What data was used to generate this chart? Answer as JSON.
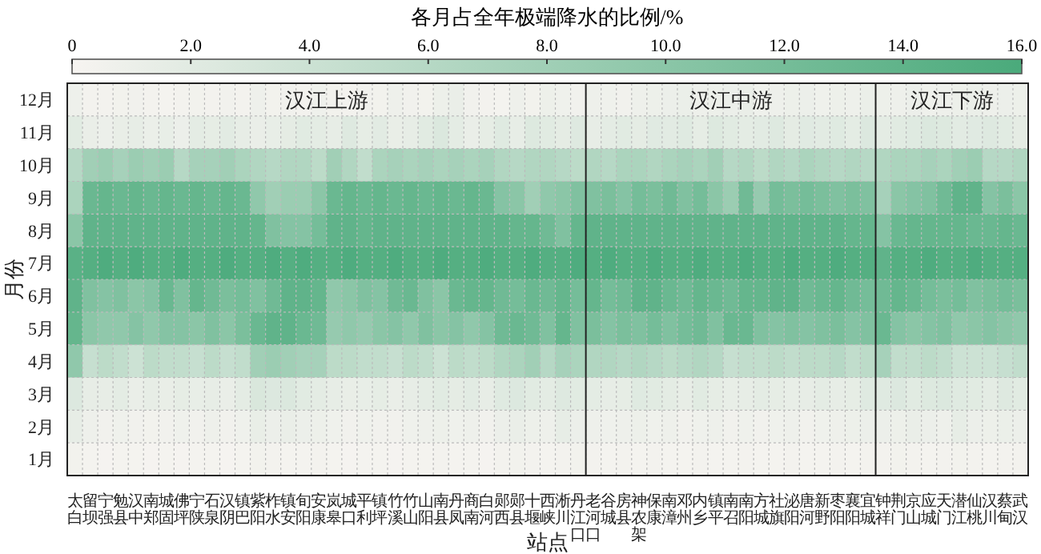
{
  "chart_data": {
    "type": "heatmap",
    "clabel": "各月占全年极端降水的比例/%",
    "xlabel": "站点",
    "ylabel": "月份",
    "categories": [
      "太白",
      "留坝",
      "宁强",
      "勉县",
      "汉中",
      "南郑",
      "城固",
      "佛坪",
      "宁陕",
      "石泉",
      "汉阴",
      "镇巴",
      "紫阳",
      "柞水",
      "镇安",
      "旬阳",
      "安康",
      "岚皋",
      "城口",
      "平利",
      "镇坪",
      "竹溪",
      "竹山",
      "山阳",
      "南县",
      "丹凤",
      "商南",
      "白河",
      "郧西",
      "郧县",
      "十堰",
      "西峡",
      "淅川",
      "丹江口",
      "老河口",
      "谷城",
      "房县",
      "神农架",
      "保康",
      "南漳",
      "邓州",
      "内乡",
      "镇平",
      "南召",
      "南阳",
      "方城",
      "社旗",
      "泌阳",
      "唐河",
      "新野",
      "枣阳",
      "襄阳",
      "宜城",
      "钟祥",
      "荆门",
      "京山",
      "应城",
      "天门",
      "潜江",
      "仙桃",
      "汉川",
      "蔡甸",
      "武汉"
    ],
    "y_categories": [
      "12月",
      "11月",
      "10月",
      "9月",
      "8月",
      "7月",
      "6月",
      "5月",
      "4月",
      "3月",
      "2月",
      "1月"
    ],
    "cells": [
      [
        0.8,
        0.4,
        0.4,
        0.5,
        0.6,
        0.4,
        0.3,
        0.4,
        0.5,
        0.4,
        0.6,
        0.4,
        0.8,
        0.5,
        0.6,
        0.4,
        0.7,
        0.5,
        0.4,
        0.6,
        0.5,
        0.8,
        0.6,
        0.5,
        0.9,
        1.2,
        0.6,
        0.4,
        0.3,
        0.8,
        0.5,
        0.9,
        0.7,
        0.6,
        0.8,
        0.7,
        0.6,
        0.8,
        0.9,
        1.0,
        1.1,
        0.8,
        0.9,
        1.0,
        1.2,
        0.7,
        0.8,
        0.9,
        1.0,
        0.7,
        0.9,
        0.8,
        1.1,
        0.9,
        0.8,
        1.0,
        0.7,
        0.8,
        0.9,
        1.1,
        0.8,
        1.0,
        0.9
      ],
      [
        2.0,
        1.2,
        1.0,
        1.3,
        1.5,
        1.1,
        1.4,
        1.0,
        1.8,
        1.6,
        1.9,
        1.5,
        1.2,
        1.4,
        1.7,
        2.0,
        1.8,
        1.5,
        2.3,
        1.6,
        1.9,
        1.3,
        1.5,
        2.0,
        2.6,
        1.8,
        1.2,
        1.6,
        2.2,
        1.5,
        2.4,
        2.0,
        1.7,
        2.3,
        1.5,
        1.8,
        2.0,
        1.7,
        2.1,
        1.9,
        2.2,
        1.6,
        2.4,
        2.0,
        1.8,
        1.9,
        2.3,
        1.7,
        2.1,
        1.9,
        2.2,
        1.8,
        2.5,
        1.8,
        2.0,
        2.2,
        2.6,
        2.4,
        1.9,
        2.1,
        2.3,
        2.0,
        1.7
      ],
      [
        6.0,
        8.0,
        8.5,
        7.5,
        8.5,
        8.0,
        8.5,
        6.0,
        7.5,
        7.5,
        8.0,
        7.0,
        6.5,
        6.0,
        6.5,
        6.5,
        5.5,
        8.0,
        6.5,
        5.0,
        7.0,
        7.5,
        7.0,
        7.5,
        7.0,
        7.5,
        7.0,
        7.5,
        6.5,
        6.0,
        6.5,
        6.5,
        6.0,
        5.5,
        6.5,
        6.0,
        7.0,
        7.0,
        6.5,
        7.0,
        7.5,
        7.0,
        8.0,
        6.0,
        6.5,
        5.5,
        6.5,
        6.0,
        7.0,
        6.5,
        6.0,
        6.5,
        6.0,
        6.5,
        7.0,
        7.0,
        7.5,
        7.0,
        8.0,
        8.5,
        6.0,
        6.0,
        6.5
      ],
      [
        7.0,
        13.0,
        13.5,
        13.0,
        13.5,
        13.0,
        13.5,
        13.0,
        13.5,
        13.0,
        13.5,
        13.0,
        9.5,
        8.0,
        8.5,
        8.5,
        10.0,
        13.0,
        13.5,
        13.0,
        13.5,
        13.0,
        13.5,
        13.0,
        13.5,
        13.0,
        13.5,
        13.0,
        10.5,
        10.0,
        8.0,
        9.5,
        10.0,
        11.0,
        11.0,
        11.5,
        10.5,
        12.0,
        11.5,
        12.5,
        11.0,
        12.0,
        10.0,
        8.5,
        12.5,
        9.0,
        12.0,
        11.5,
        12.0,
        11.5,
        11.0,
        11.5,
        11.0,
        7.5,
        10.0,
        10.5,
        11.0,
        12.5,
        14.0,
        14.0,
        10.5,
        11.5,
        10.0
      ],
      [
        10.0,
        14.0,
        14.0,
        14.0,
        14.0,
        14.0,
        14.0,
        14.0,
        14.0,
        14.0,
        14.0,
        14.0,
        13.5,
        11.0,
        10.5,
        10.5,
        12.0,
        14.0,
        14.0,
        13.5,
        14.0,
        14.0,
        14.0,
        14.0,
        14.0,
        14.0,
        14.0,
        14.0,
        14.0,
        13.5,
        13.5,
        12.5,
        11.0,
        13.5,
        14.0,
        14.0,
        14.0,
        14.0,
        14.0,
        14.0,
        14.0,
        14.0,
        14.0,
        14.0,
        14.0,
        14.0,
        14.0,
        14.0,
        14.0,
        14.0,
        14.0,
        13.5,
        13.5,
        10.5,
        13.0,
        13.5,
        13.5,
        13.5,
        13.5,
        13.0,
        13.0,
        13.5,
        13.0
      ],
      [
        14.5,
        15.0,
        15.5,
        15.0,
        15.5,
        15.0,
        15.0,
        15.5,
        15.0,
        15.0,
        15.5,
        15.0,
        15.0,
        15.5,
        15.0,
        15.5,
        15.0,
        15.0,
        15.5,
        15.0,
        15.0,
        15.5,
        15.0,
        15.0,
        15.5,
        15.0,
        15.0,
        15.5,
        15.0,
        15.0,
        15.5,
        15.0,
        15.0,
        15.5,
        15.0,
        15.5,
        15.0,
        15.0,
        15.5,
        15.0,
        15.0,
        15.5,
        15.0,
        15.0,
        15.5,
        15.0,
        15.0,
        15.5,
        15.0,
        15.0,
        15.5,
        15.0,
        15.0,
        14.0,
        15.0,
        15.0,
        15.5,
        15.0,
        15.0,
        15.5,
        15.0,
        15.0,
        15.0
      ],
      [
        14.0,
        11.0,
        10.5,
        11.0,
        10.0,
        10.5,
        13.0,
        11.0,
        13.5,
        12.5,
        11.5,
        12.0,
        11.0,
        12.5,
        14.0,
        14.0,
        13.5,
        9.5,
        10.0,
        11.0,
        10.5,
        12.5,
        13.0,
        11.0,
        10.0,
        13.0,
        13.5,
        13.5,
        12.5,
        12.0,
        13.0,
        12.5,
        13.5,
        12.0,
        13.5,
        12.0,
        12.5,
        14.0,
        14.0,
        13.0,
        12.5,
        13.5,
        13.0,
        12.5,
        13.5,
        13.5,
        14.0,
        14.0,
        12.5,
        13.0,
        13.5,
        12.5,
        12.0,
        12.5,
        13.5,
        13.0,
        12.0,
        11.5,
        12.0,
        11.0,
        11.5,
        12.0,
        11.5
      ],
      [
        13.5,
        10.0,
        9.5,
        9.5,
        10.5,
        9.5,
        10.5,
        10.5,
        10.0,
        11.0,
        10.0,
        11.5,
        13.0,
        14.0,
        14.0,
        13.0,
        12.5,
        9.0,
        9.5,
        9.0,
        10.0,
        10.5,
        9.5,
        11.0,
        10.0,
        10.5,
        9.5,
        10.5,
        12.5,
        13.0,
        12.5,
        11.0,
        13.5,
        11.0,
        11.5,
        10.5,
        11.5,
        11.0,
        12.0,
        11.0,
        12.0,
        12.5,
        11.0,
        13.0,
        13.0,
        11.0,
        10.5,
        11.0,
        10.5,
        11.0,
        11.5,
        10.5,
        11.0,
        13.0,
        10.5,
        10.0,
        10.5,
        11.0,
        9.5,
        10.0,
        10.5,
        10.0,
        9.5
      ],
      [
        9.5,
        4.5,
        5.5,
        5.0,
        4.0,
        5.5,
        5.0,
        5.0,
        4.5,
        5.5,
        4.5,
        5.0,
        8.0,
        8.5,
        8.0,
        7.5,
        7.5,
        5.5,
        5.5,
        5.0,
        5.0,
        4.5,
        5.5,
        5.0,
        4.0,
        5.5,
        5.0,
        5.5,
        6.5,
        7.0,
        8.0,
        6.0,
        7.5,
        7.0,
        6.5,
        6.5,
        6.0,
        6.5,
        6.0,
        5.5,
        6.0,
        6.5,
        6.0,
        4.5,
        5.0,
        5.0,
        5.5,
        5.0,
        5.5,
        5.5,
        6.0,
        5.0,
        5.5,
        7.5,
        5.0,
        5.0,
        5.5,
        5.0,
        4.0,
        4.0,
        4.0,
        4.5,
        5.0
      ],
      [
        2.5,
        1.5,
        1.5,
        1.8,
        1.2,
        1.5,
        1.3,
        1.6,
        1.4,
        1.5,
        1.2,
        1.8,
        2.8,
        2.5,
        2.6,
        2.0,
        1.8,
        1.5,
        1.3,
        1.4,
        1.6,
        1.2,
        1.5,
        1.8,
        2.0,
        1.7,
        1.9,
        1.5,
        2.2,
        2.5,
        2.0,
        1.8,
        2.3,
        2.0,
        1.8,
        1.5,
        1.6,
        2.2,
        2.0,
        1.8,
        1.5,
        2.0,
        1.6,
        1.4,
        1.5,
        1.8,
        1.6,
        1.4,
        1.5,
        1.8,
        1.5,
        1.6,
        2.2,
        2.2,
        2.5,
        2.0,
        2.4,
        2.6,
        2.2,
        2.0,
        1.8,
        2.3,
        2.0
      ],
      [
        1.5,
        0.8,
        0.6,
        0.7,
        0.6,
        0.5,
        0.6,
        0.7,
        0.6,
        0.8,
        0.6,
        0.7,
        1.3,
        1.0,
        1.2,
        1.0,
        0.9,
        0.7,
        0.6,
        0.7,
        0.6,
        0.6,
        0.7,
        0.8,
        0.9,
        0.7,
        0.8,
        0.6,
        1.0,
        1.2,
        0.9,
        0.8,
        1.5,
        1.0,
        0.8,
        0.7,
        0.8,
        0.9,
        0.7,
        0.8,
        0.6,
        0.7,
        0.8,
        0.6,
        0.7,
        0.6,
        0.7,
        0.8,
        0.6,
        0.7,
        0.8,
        0.9,
        1.0,
        1.0,
        0.9,
        1.2,
        1.0,
        0.8,
        1.5,
        1.0,
        0.9,
        1.1,
        1.0
      ],
      [
        0.5,
        0.3,
        0.2,
        0.3,
        0.3,
        0.2,
        0.3,
        0.2,
        0.3,
        0.3,
        0.2,
        0.3,
        0.5,
        0.4,
        0.3,
        0.3,
        0.4,
        0.3,
        0.2,
        0.3,
        0.3,
        0.2,
        0.3,
        0.3,
        0.4,
        0.3,
        0.3,
        0.2,
        0.4,
        0.5,
        0.4,
        0.3,
        0.4,
        0.5,
        0.4,
        0.3,
        0.4,
        0.3,
        0.4,
        0.3,
        0.3,
        0.4,
        0.3,
        0.3,
        0.4,
        0.3,
        0.3,
        0.4,
        0.3,
        0.3,
        0.4,
        0.3,
        0.4,
        0.4,
        0.5,
        0.4,
        0.3,
        0.4,
        0.5,
        0.4,
        0.3,
        0.4,
        0.4
      ]
    ],
    "clim": [
      0,
      16
    ],
    "cticks": [
      0,
      {
        "value": 2,
        "label": "2.0"
      },
      {
        "value": 4,
        "label": "4.0"
      },
      {
        "value": 6,
        "label": "6.0"
      },
      {
        "value": 8,
        "label": "8.0"
      },
      {
        "value": 10,
        "label": "10.0"
      },
      {
        "value": 12,
        "label": "12.0"
      },
      {
        "value": 14,
        "label": "14.0"
      },
      {
        "value": 16,
        "label": "16.0"
      }
    ],
    "grid": true,
    "annotations": [
      "汉江上游",
      "汉江中游",
      "汉江下游"
    ]
  }
}
